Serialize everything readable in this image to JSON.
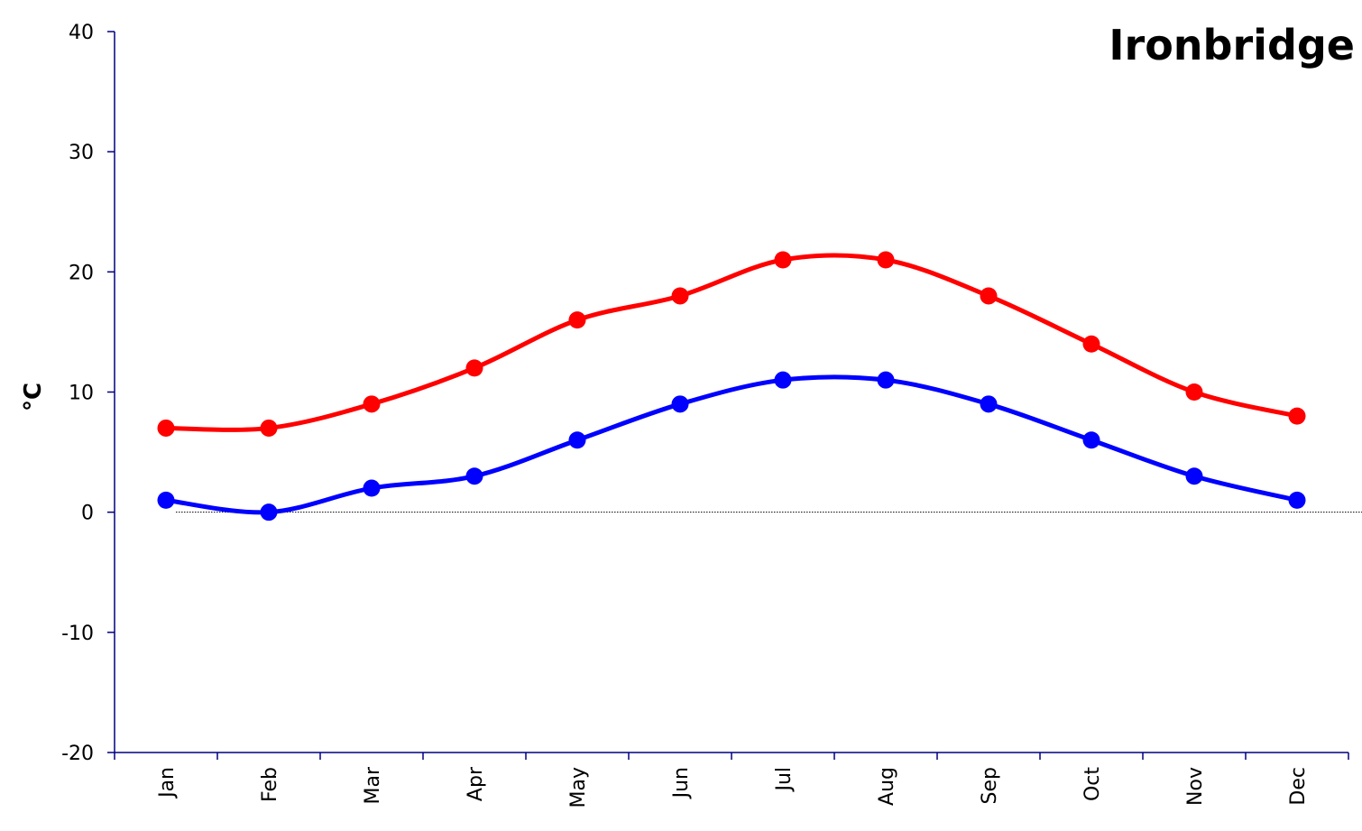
{
  "chart_data": {
    "type": "line",
    "title": "Ironbridge",
    "xlabel": "",
    "ylabel": "°C",
    "ylim": [
      -20,
      40
    ],
    "yticks": [
      "40",
      "30",
      "20",
      "10",
      "0",
      "-10",
      "-20"
    ],
    "categories": [
      "Jan",
      "Feb",
      "Mar",
      "Apr",
      "May",
      "Jun",
      "Jul",
      "Aug",
      "Sep",
      "Oct",
      "Nov",
      "Dec"
    ],
    "series": [
      {
        "color": "#ff0000",
        "values": [
          7,
          7,
          9,
          12,
          16,
          18,
          21,
          21,
          18,
          14,
          10,
          8
        ]
      },
      {
        "color": "#0000ff",
        "values": [
          1,
          0,
          2,
          3,
          6,
          9,
          11,
          11,
          9,
          6,
          3,
          1
        ]
      }
    ],
    "zero_line": true,
    "grid": false,
    "axis_color": "#000080"
  }
}
